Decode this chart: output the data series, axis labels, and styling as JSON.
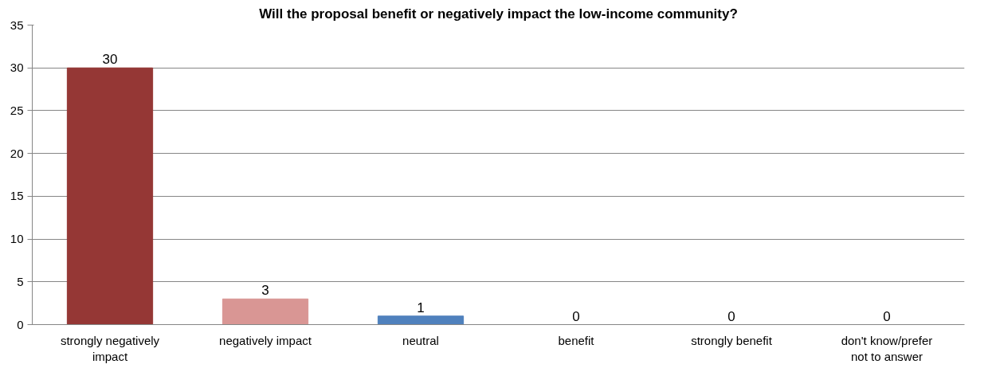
{
  "chart_data": {
    "type": "bar",
    "title": "Will the proposal benefit or negatively impact the low-income community?",
    "categories": [
      "strongly negatively impact",
      "negatively impact",
      "neutral",
      "benefit",
      "strongly benefit",
      "don't know/prefer not to answer"
    ],
    "values": [
      30,
      3,
      1,
      0,
      0,
      0
    ],
    "colors": [
      "#953735",
      "#d99694",
      "#4f81bd",
      "#4f81bd",
      "#4f81bd",
      "#4f81bd"
    ],
    "ylim": [
      0,
      35
    ],
    "yticks": [
      0,
      5,
      10,
      15,
      20,
      25,
      30,
      35
    ],
    "grid": "y",
    "data_labels": true
  }
}
